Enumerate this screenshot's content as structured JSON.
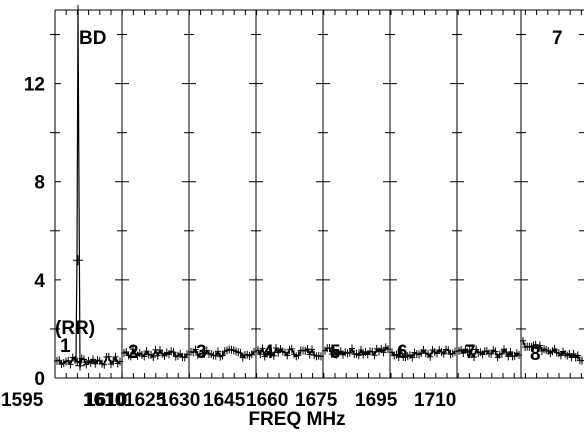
{
  "chart_data": {
    "type": "line",
    "xlabel": "FREQ MHz",
    "ylabel": "",
    "ylim": [
      0,
      15
    ],
    "y_ticks": [
      "0",
      "4",
      "8",
      "12"
    ],
    "x_tick_labels": [
      "1595",
      "1610",
      "1610",
      "1625",
      "1630",
      "1645",
      "1660",
      "1675",
      "1695",
      "1710"
    ],
    "annotations": {
      "top_left": "BD",
      "top_right": "7",
      "polarization": "(RR)"
    },
    "panels": [
      {
        "index": "1",
        "freq_range": [
          1595,
          1610
        ],
        "baseline": 0.7,
        "spike": {
          "x": 1600,
          "value": 15.0
        }
      },
      {
        "index": "2",
        "freq_range": [
          1610,
          1625
        ],
        "baseline": 1.0
      },
      {
        "index": "3",
        "freq_range": [
          1625,
          1640
        ],
        "baseline": 1.0
      },
      {
        "index": "4",
        "freq_range": [
          1640,
          1655
        ],
        "baseline": 1.05
      },
      {
        "index": "5",
        "freq_range": [
          1655,
          1670
        ],
        "baseline": 1.1
      },
      {
        "index": "6",
        "freq_range": [
          1670,
          1685
        ],
        "baseline": 1.0
      },
      {
        "index": "7",
        "freq_range": [
          1685,
          1700
        ],
        "baseline": 1.0
      },
      {
        "index": "8",
        "freq_range": [
          1700,
          1715
        ],
        "baseline": 1.1
      }
    ]
  }
}
